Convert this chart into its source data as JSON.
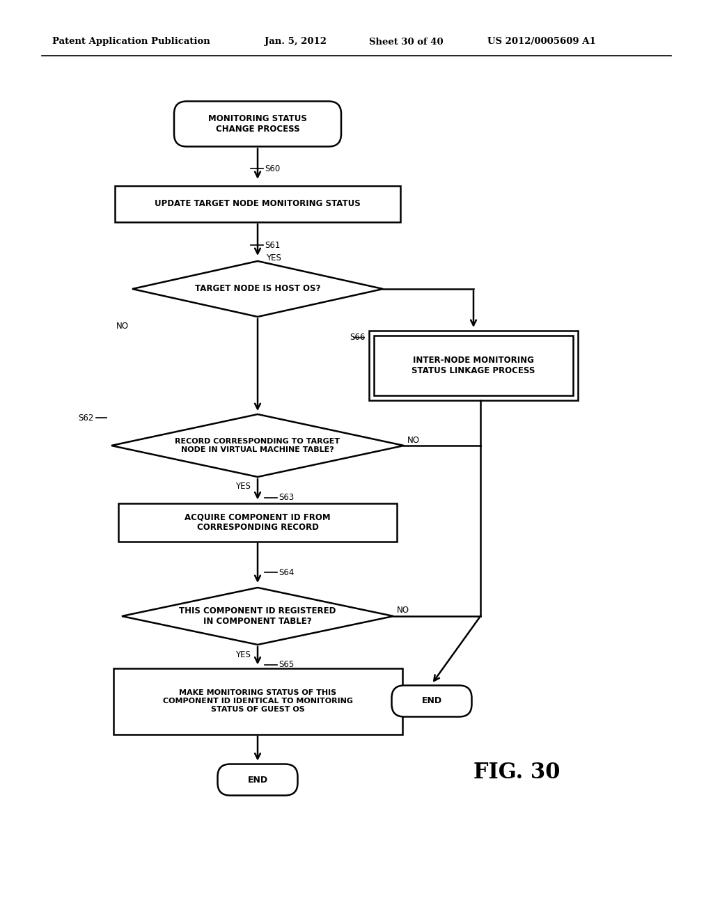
{
  "bg_color": "#ffffff",
  "header_text": "Patent Application Publication",
  "header_date": "Jan. 5, 2012",
  "header_sheet": "Sheet 30 of 40",
  "header_patent": "US 2012/0005609 A1",
  "fig_label": "FIG. 30",
  "lw": 1.8,
  "font_size": 8.0,
  "label_font_size": 8.5
}
